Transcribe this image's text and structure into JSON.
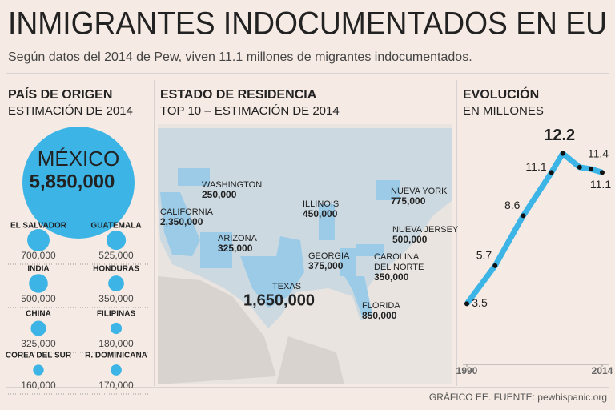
{
  "header": {
    "title": "INMIGRANTES INDOCUMENTADOS EN EU",
    "subtitle": "Según datos del 2014 de Pew, viven 11.1 millones de migrantes indocumentados."
  },
  "origin": {
    "heading": "PAÍS DE ORIGEN",
    "subheading": "ESTIMACIÓN DE 2014",
    "top": {
      "name": "MÉXICO",
      "value": 5850000,
      "value_label": "5,850,000"
    },
    "countries": [
      {
        "name": "EL SALVADOR",
        "value": 700000,
        "value_label": "700,000"
      },
      {
        "name": "GUATEMALA",
        "value": 525000,
        "value_label": "525,000"
      },
      {
        "name": "INDIA",
        "value": 500000,
        "value_label": "500,000"
      },
      {
        "name": "HONDURAS",
        "value": 350000,
        "value_label": "350,000"
      },
      {
        "name": "CHINA",
        "value": 325000,
        "value_label": "325,000"
      },
      {
        "name": "FILIPINAS",
        "value": 180000,
        "value_label": "180,000"
      },
      {
        "name": "COREA DEL SUR",
        "value": 160000,
        "value_label": "160,000"
      },
      {
        "name": "R. DOMINICANA",
        "value": 170000,
        "value_label": "170,000"
      }
    ]
  },
  "residence": {
    "heading": "ESTADO DE RESIDENCIA",
    "subheading": "TOP 10 – ESTIMACIÓN DE 2014",
    "states": [
      {
        "name": [
          "WASHINGTON"
        ],
        "value": "250,000"
      },
      {
        "name": [
          "CALIFORNIA"
        ],
        "value": "2,350,000"
      },
      {
        "name": [
          "ARIZONA"
        ],
        "value": "325,000"
      },
      {
        "name": [
          "TEXAS"
        ],
        "value": "1,650,000"
      },
      {
        "name": [
          "ILLINOIS"
        ],
        "value": "450,000"
      },
      {
        "name": [
          "NUEVA YORK"
        ],
        "value": "775,000"
      },
      {
        "name": [
          "NUEVA JERSEY"
        ],
        "value": "500,000"
      },
      {
        "name": [
          "GEORGIA"
        ],
        "value": "375,000"
      },
      {
        "name": [
          "CAROLINA",
          "DEL NORTE"
        ],
        "value": "350,000"
      },
      {
        "name": [
          "FLORIDA"
        ],
        "value": "850,000"
      }
    ]
  },
  "chart_data": {
    "type": "line",
    "title": "EVOLUCIÓN",
    "subtitle": "EN MILLONES",
    "x": [
      1990,
      1995,
      2000,
      2005,
      2007,
      2010,
      2012,
      2014
    ],
    "series": [
      {
        "name": "Inmigrantes indocumentados",
        "color": "#3cb4e6",
        "values": [
          3.5,
          5.7,
          8.6,
          11.1,
          12.2,
          11.4,
          11.3,
          11.1
        ],
        "value_labels": [
          "3.5",
          "5.7",
          "8.6",
          "11.1",
          "12.2",
          "11.4",
          null,
          "11.1"
        ]
      }
    ],
    "xlim": [
      1990,
      2014
    ],
    "xticks": [
      1990,
      2014
    ],
    "ylim": [
      0,
      13.2
    ]
  },
  "footer": "GRÁFICO EE. FUENTE: pewhispanic.org"
}
